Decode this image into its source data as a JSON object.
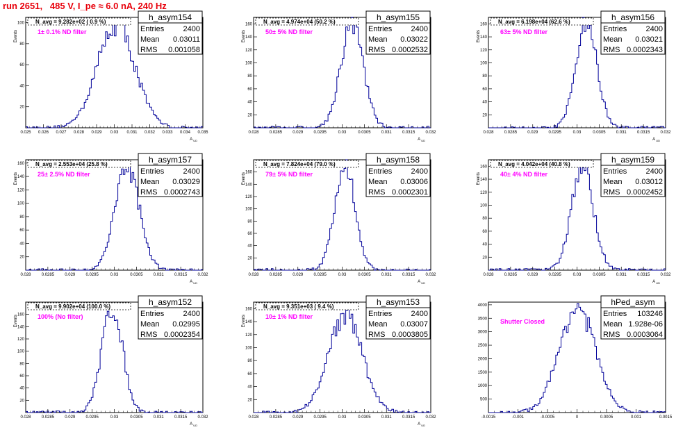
{
  "canvas_title": "run 2651,   485 V, I_pe ≈ 6.0 nA, 240 Hz",
  "colors": {
    "title": "#e8000b",
    "hist": "#000099",
    "filter_text": "#ff00ff",
    "frame": "#000000"
  },
  "chart_data": [
    {
      "type": "histogram",
      "title": "h_asym154",
      "stats": {
        "entries": "2400",
        "mean": "0.03011",
        "rms": "0.001058"
      },
      "n_avg": "N_avg = 9.282e+02 ( 0.9 %)",
      "filter": "1± 0.1% ND filter",
      "xlim": [
        0.025,
        0.035
      ],
      "ylim": [
        0,
        105
      ],
      "xticks": [
        "0.025",
        "0.026",
        "0.027",
        "0.028",
        "0.029",
        "0.03",
        "0.031",
        "0.032",
        "0.033",
        "0.034",
        "0.035"
      ],
      "yticks": [
        20,
        40,
        60,
        80,
        100
      ],
      "xlabel": "A_UD",
      "ylabel": "Events",
      "peak": 98,
      "center": 0.0301,
      "width": 0.00106
    },
    {
      "type": "histogram",
      "title": "h_asym155",
      "stats": {
        "entries": "2400",
        "mean": "0.03022",
        "rms": "0.0002532"
      },
      "n_avg": "N_avg = 4.974e+04 (50.2 %)",
      "filter": "50± 5% ND filter",
      "xlim": [
        0.028,
        0.032
      ],
      "ylim": [
        0,
        170
      ],
      "xticks": [
        "0.028",
        "0.0285",
        "0.029",
        "0.0295",
        "0.03",
        "0.0305",
        "0.031",
        "0.0315",
        "0.032"
      ],
      "yticks": [
        20,
        40,
        60,
        80,
        100,
        120,
        140,
        160
      ],
      "xlabel": "A_UD",
      "ylabel": "Events",
      "peak": 162,
      "center": 0.03022,
      "width": 0.000253
    },
    {
      "type": "histogram",
      "title": "h_asym156",
      "stats": {
        "entries": "2400",
        "mean": "0.03021",
        "rms": "0.0002343"
      },
      "n_avg": "N_avg = 6.198e+04 (62.6 %)",
      "filter": "63± 5% ND filter",
      "xlim": [
        0.028,
        0.032
      ],
      "ylim": [
        0,
        170
      ],
      "xticks": [
        "0.028",
        "0.0285",
        "0.029",
        "0.0295",
        "0.03",
        "0.0305",
        "0.031",
        "0.0315",
        "0.032"
      ],
      "yticks": [
        20,
        40,
        60,
        80,
        100,
        120,
        140,
        160
      ],
      "xlabel": "A_UD",
      "ylabel": "Events",
      "peak": 165,
      "center": 0.03021,
      "width": 0.000234
    },
    {
      "type": "histogram",
      "title": "h_asym157",
      "stats": {
        "entries": "2400",
        "mean": "0.03029",
        "rms": "0.0002743"
      },
      "n_avg": "N_avg = 2.553e+04 (25.8 %)",
      "filter": "25± 2.5% ND filter",
      "xlim": [
        0.028,
        0.032
      ],
      "ylim": [
        0,
        165
      ],
      "xticks": [
        "0.028",
        "0.0285",
        "0.029",
        "0.0295",
        "0.03",
        "0.0305",
        "0.031",
        "0.0315",
        "0.032"
      ],
      "yticks": [
        20,
        40,
        60,
        80,
        100,
        120,
        140,
        160
      ],
      "xlabel": "A_UD",
      "ylabel": "Events",
      "peak": 156,
      "center": 0.03029,
      "width": 0.000274
    },
    {
      "type": "histogram",
      "title": "h_asym158",
      "stats": {
        "entries": "2400",
        "mean": "0.03006",
        "rms": "0.0002301"
      },
      "n_avg": "N_avg = 7.824e+04 (79.0 %)",
      "filter": "79± 5% ND filter",
      "xlim": [
        0.028,
        0.032
      ],
      "ylim": [
        0,
        180
      ],
      "xticks": [
        "0.028",
        "0.0285",
        "0.029",
        "0.0295",
        "0.03",
        "0.0305",
        "0.031",
        "0.0315",
        "0.032"
      ],
      "yticks": [
        20,
        40,
        60,
        80,
        100,
        120,
        140,
        160
      ],
      "xlabel": "A_UD",
      "ylabel": "Events",
      "peak": 170,
      "center": 0.03006,
      "width": 0.00023
    },
    {
      "type": "histogram",
      "title": "h_asym159",
      "stats": {
        "entries": "2400",
        "mean": "0.03012",
        "rms": "0.0002452"
      },
      "n_avg": "N_avg = 4.042e+04 (40.8 %)",
      "filter": "40± 4% ND filter",
      "xlim": [
        0.028,
        0.032
      ],
      "ylim": [
        0,
        170
      ],
      "xticks": [
        "0.028",
        "0.0285",
        "0.029",
        "0.0295",
        "0.03",
        "0.0305",
        "0.031",
        "0.0315",
        "0.032"
      ],
      "yticks": [
        20,
        40,
        60,
        80,
        100,
        120,
        140,
        160
      ],
      "xlabel": "A_UD",
      "ylabel": "Events",
      "peak": 160,
      "center": 0.03012,
      "width": 0.000245
    },
    {
      "type": "histogram",
      "title": "h_asym152",
      "stats": {
        "entries": "2400",
        "mean": "0.02995",
        "rms": "0.0002354"
      },
      "n_avg": "N_avg = 9.902e+04 (100.0 %)",
      "filter": "100% (No filter)",
      "xlim": [
        0.028,
        0.032
      ],
      "ylim": [
        0,
        180
      ],
      "xticks": [
        "0.028",
        "0.0285",
        "0.029",
        "0.0295",
        "0.03",
        "0.0305",
        "0.031",
        "0.0315",
        "0.032"
      ],
      "yticks": [
        20,
        40,
        60,
        80,
        100,
        120,
        140,
        160
      ],
      "xlabel": "A_UD",
      "ylabel": "Events",
      "peak": 172,
      "center": 0.02995,
      "width": 0.000235
    },
    {
      "type": "histogram",
      "title": "h_asym153",
      "stats": {
        "entries": "2400",
        "mean": "0.03007",
        "rms": "0.0003805"
      },
      "n_avg": "N_avg = 9.351e+03 ( 9.4 %)",
      "filter": "10± 1% ND filter",
      "xlim": [
        0.028,
        0.032
      ],
      "ylim": [
        0,
        170
      ],
      "xticks": [
        "0.028",
        "0.0285",
        "0.029",
        "0.0295",
        "0.03",
        "0.0305",
        "0.031",
        "0.0315",
        "0.032"
      ],
      "yticks": [
        20,
        40,
        60,
        80,
        100,
        120,
        140,
        160
      ],
      "xlabel": "A_UD",
      "ylabel": "Events",
      "peak": 152,
      "center": 0.03007,
      "width": 0.00038
    },
    {
      "type": "histogram",
      "title": "hPed_asym",
      "stats": {
        "entries": "103246",
        "mean": "1.928e-06",
        "rms": "0.0003064"
      },
      "n_avg": "",
      "filter": "Shutter Closed",
      "xlim": [
        -0.0015,
        0.0015
      ],
      "ylim": [
        0,
        4100
      ],
      "xticks": [
        "-0.0015",
        "-0.001",
        "-0.0005",
        "0",
        "0.0005",
        "0.001",
        "0.0015"
      ],
      "yticks": [
        500,
        1000,
        1500,
        2000,
        2500,
        3000,
        3500,
        4000
      ],
      "xlabel": "",
      "ylabel": "",
      "peak": 3900,
      "center": 1.9e-06,
      "width": 0.000306
    }
  ]
}
